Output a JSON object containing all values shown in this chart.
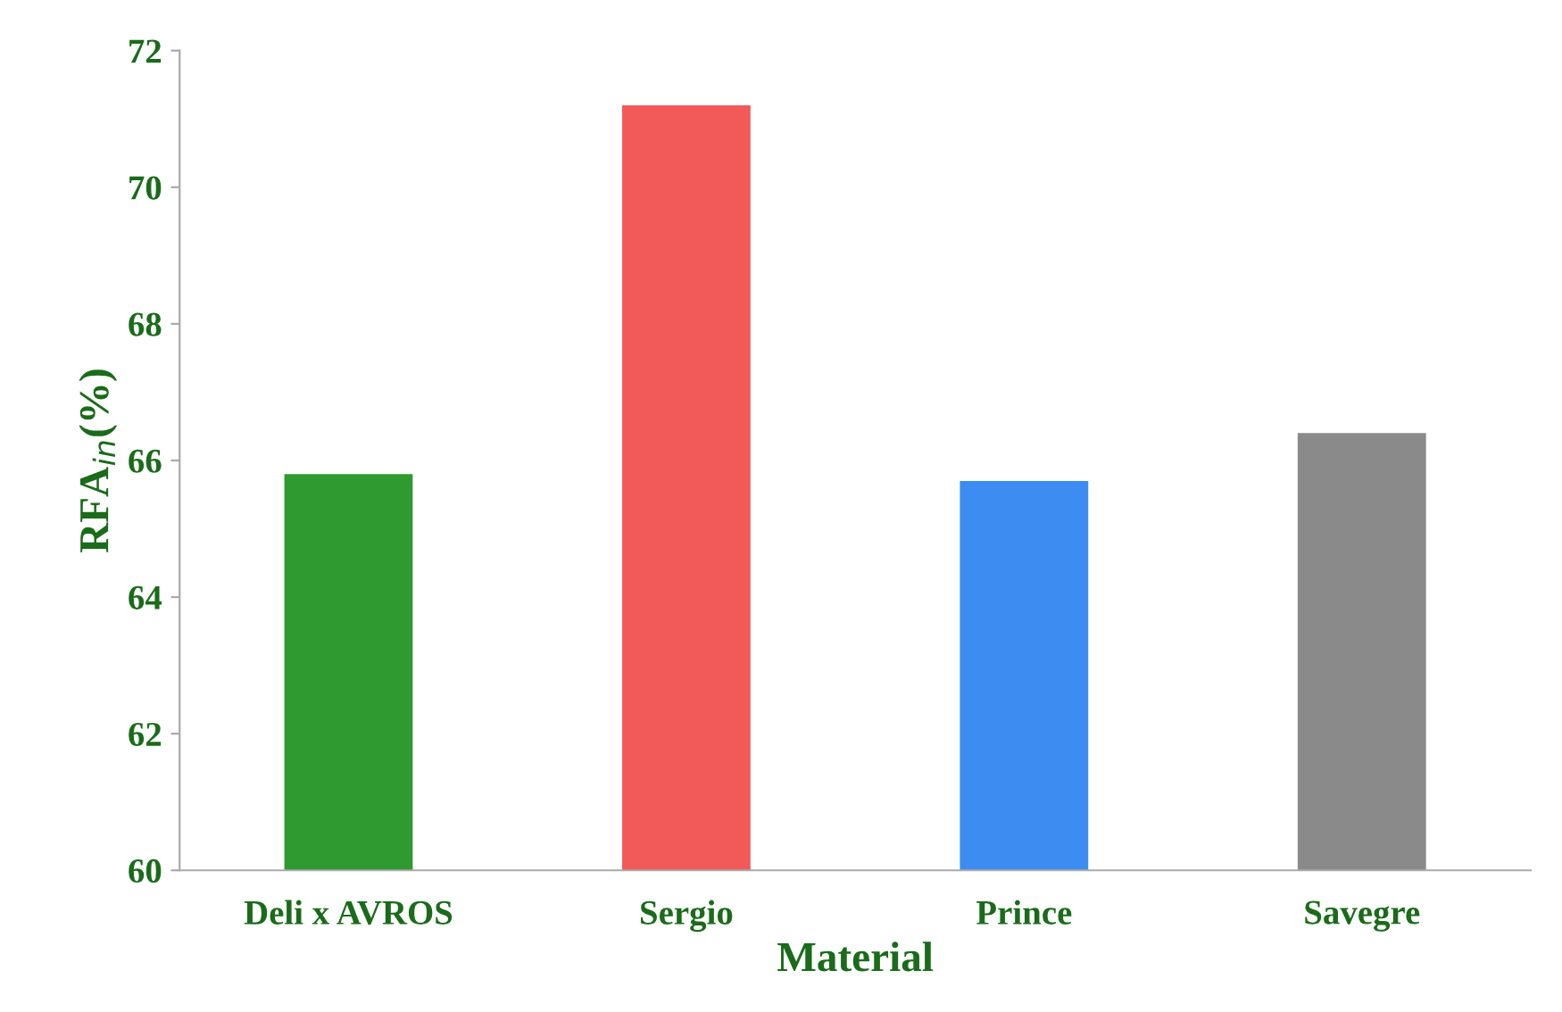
{
  "chart_data": {
    "type": "bar",
    "xlabel": "Material",
    "ylabel": "RFA$_{in}$(%)",
    "categories": [
      "Deli x AVROS",
      "Sergio",
      "Prince",
      "Savegre"
    ],
    "values": [
      65.8,
      71.2,
      65.7,
      66.4
    ],
    "colors": [
      "#2f9a2f",
      "#f25a5a",
      "#3c8cf2",
      "#8a8a8a"
    ],
    "ylim": [
      60,
      72
    ],
    "yticks": [
      60,
      62,
      64,
      66,
      68,
      70,
      72
    ],
    "grid": false
  }
}
